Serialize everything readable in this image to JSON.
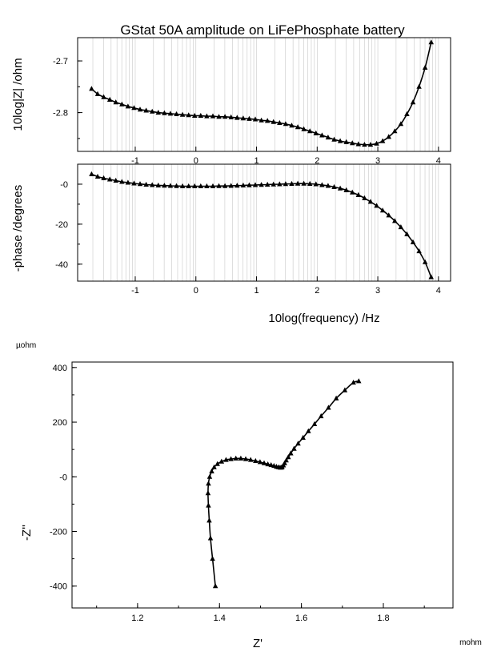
{
  "chart_data": [
    {
      "type": "line",
      "title": "GStat 50A amplitude on LiFePhosphate battery",
      "xlabel": "",
      "ylabel": "10log|Z| /ohm",
      "xscale": "log10 (values are log10 of frequency)",
      "xlim": [
        -1.95,
        4.2
      ],
      "ylim": [
        -2.875,
        -2.655
      ],
      "grid": "vertical log-decade gridlines",
      "x_ticks": [
        "-1",
        "0",
        "1",
        "2",
        "3",
        "4"
      ],
      "y_ticks": [
        "-2.7",
        "-2.8"
      ],
      "marker": "triangle",
      "series": [
        {
          "x": [
            -1.72,
            -1.62,
            -1.52,
            -1.42,
            -1.32,
            -1.22,
            -1.12,
            -1.02,
            -0.92,
            -0.82,
            -0.72,
            -0.62,
            -0.52,
            -0.42,
            -0.32,
            -0.22,
            -0.12,
            -0.02,
            0.08,
            0.18,
            0.28,
            0.38,
            0.48,
            0.58,
            0.68,
            0.78,
            0.88,
            0.98,
            1.08,
            1.18,
            1.28,
            1.38,
            1.48,
            1.58,
            1.68,
            1.78,
            1.88,
            1.98,
            2.08,
            2.18,
            2.28,
            2.38,
            2.48,
            2.58,
            2.68,
            2.78,
            2.88,
            2.98,
            3.08,
            3.18,
            3.28,
            3.38,
            3.48,
            3.58,
            3.68,
            3.78,
            3.88
          ],
          "y": [
            -2.754,
            -2.764,
            -2.77,
            -2.775,
            -2.78,
            -2.784,
            -2.788,
            -2.791,
            -2.794,
            -2.796,
            -2.798,
            -2.8,
            -2.801,
            -2.802,
            -2.803,
            -2.804,
            -2.805,
            -2.806,
            -2.806,
            -2.807,
            -2.807,
            -2.808,
            -2.808,
            -2.809,
            -2.81,
            -2.811,
            -2.812,
            -2.813,
            -2.815,
            -2.816,
            -2.818,
            -2.82,
            -2.822,
            -2.825,
            -2.828,
            -2.832,
            -2.836,
            -2.84,
            -2.844,
            -2.848,
            -2.852,
            -2.855,
            -2.857,
            -2.859,
            -2.861,
            -2.862,
            -2.862,
            -2.86,
            -2.855,
            -2.847,
            -2.836,
            -2.822,
            -2.803,
            -2.78,
            -2.75,
            -2.713,
            -2.664
          ]
        }
      ]
    },
    {
      "type": "line",
      "title": "",
      "xlabel": "10log(frequency) /Hz",
      "ylabel": "-phase /degrees",
      "xscale": "log10 (values are log10 of frequency)",
      "xlim": [
        -1.95,
        4.2
      ],
      "ylim": [
        -48.5,
        10
      ],
      "grid": "vertical log-decade gridlines",
      "x_ticks": [
        "-1",
        "0",
        "1",
        "2",
        "3",
        "4"
      ],
      "y_ticks": [
        "-0",
        "-20",
        "-40"
      ],
      "marker": "triangle",
      "series": [
        {
          "x": [
            -1.72,
            -1.62,
            -1.52,
            -1.42,
            -1.32,
            -1.22,
            -1.12,
            -1.02,
            -0.92,
            -0.82,
            -0.72,
            -0.62,
            -0.52,
            -0.42,
            -0.32,
            -0.22,
            -0.12,
            -0.02,
            0.08,
            0.18,
            0.28,
            0.38,
            0.48,
            0.58,
            0.68,
            0.78,
            0.88,
            0.98,
            1.08,
            1.18,
            1.28,
            1.38,
            1.48,
            1.58,
            1.68,
            1.78,
            1.88,
            1.98,
            2.08,
            2.18,
            2.28,
            2.38,
            2.48,
            2.58,
            2.68,
            2.78,
            2.88,
            2.98,
            3.08,
            3.18,
            3.28,
            3.38,
            3.48,
            3.58,
            3.68,
            3.78,
            3.88
          ],
          "y": [
            5.0,
            3.8,
            3.0,
            2.4,
            1.8,
            1.2,
            0.8,
            0.4,
            0.1,
            -0.2,
            -0.4,
            -0.6,
            -0.7,
            -0.8,
            -0.9,
            -1.0,
            -1.0,
            -1.0,
            -1.0,
            -1.0,
            -1.0,
            -0.9,
            -0.9,
            -0.8,
            -0.7,
            -0.6,
            -0.5,
            -0.4,
            -0.3,
            -0.2,
            -0.1,
            0.0,
            0.1,
            0.2,
            0.3,
            0.3,
            0.2,
            0.0,
            -0.4,
            -0.8,
            -1.4,
            -2.1,
            -3.0,
            -4.1,
            -5.4,
            -7.0,
            -8.8,
            -10.8,
            -13.1,
            -15.6,
            -18.4,
            -21.5,
            -25.0,
            -29.0,
            -33.5,
            -39.0,
            -46.5
          ]
        }
      ]
    },
    {
      "type": "scatter",
      "title": "",
      "xlabel": "Z'",
      "ylabel": "-Z''",
      "x_unit": "mohm",
      "y_unit": "µohm",
      "xlim": [
        1.04,
        1.97
      ],
      "ylim": [
        -480,
        420
      ],
      "grid": false,
      "x_ticks": [
        "1.2",
        "1.4",
        "1.6",
        "1.8"
      ],
      "y_ticks": [
        "400",
        "200",
        "-0",
        "-200",
        "-400"
      ],
      "marker": "triangle",
      "series": [
        {
          "x": [
            1.39,
            1.383,
            1.378,
            1.375,
            1.373,
            1.372,
            1.373,
            1.376,
            1.381,
            1.387,
            1.395,
            1.405,
            1.416,
            1.428,
            1.44,
            1.452,
            1.464,
            1.476,
            1.488,
            1.499,
            1.509,
            1.518,
            1.526,
            1.533,
            1.539,
            1.544,
            1.548,
            1.551,
            1.553,
            1.556,
            1.559,
            1.563,
            1.568,
            1.574,
            1.582,
            1.592,
            1.604,
            1.617,
            1.632,
            1.648,
            1.666,
            1.685,
            1.706,
            1.727,
            1.74
          ],
          "y": [
            -400,
            -300,
            -225,
            -160,
            -105,
            -60,
            -25,
            0,
            20,
            35,
            47,
            56,
            62,
            65,
            67,
            67,
            65,
            62,
            58,
            54,
            50,
            46,
            43,
            40,
            37,
            35,
            34,
            34,
            36,
            42,
            50,
            60,
            72,
            86,
            103,
            122,
            143,
            167,
            193,
            222,
            253,
            287,
            317,
            345,
            350
          ]
        }
      ]
    }
  ]
}
